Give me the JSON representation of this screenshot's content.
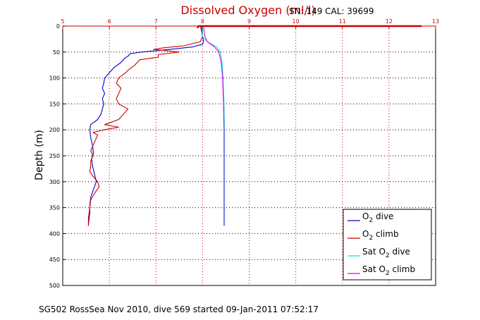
{
  "chart_data": {
    "type": "line",
    "title": "Dissolved Oxygen (ml/l)",
    "info_label": "SN: 149  CAL: 39699",
    "ylabel": "Depth (m)",
    "footer": "SG502 RossSea Nov 2010, dive 569 started 09-Jan-2011 07:52:17",
    "xlim": [
      5,
      13
    ],
    "ylim": [
      0,
      500
    ],
    "y_reversed": true,
    "x_axis_position": "top",
    "x_ticks": [
      5,
      6,
      7,
      8,
      9,
      10,
      11,
      12,
      13
    ],
    "y_ticks": [
      0,
      50,
      100,
      150,
      200,
      250,
      300,
      350,
      400,
      450,
      500
    ],
    "grid": true,
    "legend_position": "bottom-right",
    "series": [
      {
        "name_main": "O",
        "name_sub": "2",
        "name_rest": " dive",
        "color": "#0000cc",
        "points": [
          [
            7.98,
            0
          ],
          [
            7.99,
            10
          ],
          [
            8.0,
            20
          ],
          [
            8.02,
            30
          ],
          [
            8.0,
            35
          ],
          [
            7.8,
            40
          ],
          [
            7.3,
            45
          ],
          [
            6.7,
            50
          ],
          [
            6.45,
            53
          ],
          [
            6.4,
            58
          ],
          [
            6.33,
            62
          ],
          [
            6.25,
            70
          ],
          [
            6.1,
            80
          ],
          [
            6.0,
            90
          ],
          [
            5.9,
            100
          ],
          [
            5.88,
            110
          ],
          [
            5.85,
            120
          ],
          [
            5.9,
            130
          ],
          [
            5.85,
            140
          ],
          [
            5.88,
            150
          ],
          [
            5.85,
            160
          ],
          [
            5.82,
            170
          ],
          [
            5.75,
            180
          ],
          [
            5.6,
            190
          ],
          [
            5.58,
            200
          ],
          [
            5.6,
            215
          ],
          [
            5.64,
            230
          ],
          [
            5.66,
            245
          ],
          [
            5.62,
            255
          ],
          [
            5.64,
            270
          ],
          [
            5.68,
            285
          ],
          [
            5.72,
            300
          ],
          [
            5.66,
            315
          ],
          [
            5.6,
            330
          ],
          [
            5.58,
            345
          ],
          [
            5.58,
            360
          ],
          [
            5.56,
            375
          ],
          [
            5.55,
            385
          ]
        ]
      },
      {
        "name_main": "O",
        "name_sub": "2",
        "name_rest": " climb",
        "color": "#cc0000",
        "points": [
          [
            7.95,
            0
          ],
          [
            7.98,
            10
          ],
          [
            8.0,
            20
          ],
          [
            7.95,
            30
          ],
          [
            7.6,
            38
          ],
          [
            7.15,
            42
          ],
          [
            6.95,
            45
          ],
          [
            7.5,
            50
          ],
          [
            7.05,
            55
          ],
          [
            7.05,
            60
          ],
          [
            6.65,
            65
          ],
          [
            6.55,
            75
          ],
          [
            6.4,
            85
          ],
          [
            6.35,
            90
          ],
          [
            6.2,
            100
          ],
          [
            6.15,
            110
          ],
          [
            6.25,
            120
          ],
          [
            6.2,
            130
          ],
          [
            6.15,
            140
          ],
          [
            6.2,
            150
          ],
          [
            6.4,
            160
          ],
          [
            6.3,
            170
          ],
          [
            6.2,
            180
          ],
          [
            6.05,
            185
          ],
          [
            5.9,
            190
          ],
          [
            6.2,
            195
          ],
          [
            5.88,
            200
          ],
          [
            5.65,
            205
          ],
          [
            5.75,
            210
          ],
          [
            5.7,
            220
          ],
          [
            5.65,
            230
          ],
          [
            5.6,
            240
          ],
          [
            5.65,
            250
          ],
          [
            5.6,
            260
          ],
          [
            5.6,
            270
          ],
          [
            5.58,
            280
          ],
          [
            5.65,
            290
          ],
          [
            5.75,
            300
          ],
          [
            5.78,
            310
          ],
          [
            5.7,
            320
          ],
          [
            5.6,
            335
          ],
          [
            5.58,
            350
          ],
          [
            5.55,
            370
          ],
          [
            5.55,
            385
          ]
        ]
      },
      {
        "name_main": "Sat O",
        "name_sub": "2",
        "name_rest": " dive",
        "color": "#00e6e6",
        "points": [
          [
            8.0,
            0
          ],
          [
            8.0,
            20
          ],
          [
            8.1,
            30
          ],
          [
            8.3,
            40
          ],
          [
            8.38,
            50
          ],
          [
            8.42,
            70
          ],
          [
            8.44,
            100
          ],
          [
            8.46,
            150
          ],
          [
            8.47,
            200
          ],
          [
            8.47,
            250
          ],
          [
            8.47,
            300
          ],
          [
            8.47,
            350
          ],
          [
            8.47,
            385
          ]
        ]
      },
      {
        "name_main": "Sat O",
        "name_sub": "2",
        "name_rest": " climb",
        "color": "#e600e6",
        "points": [
          [
            8.02,
            0
          ],
          [
            8.05,
            20
          ],
          [
            8.1,
            30
          ],
          [
            8.25,
            40
          ],
          [
            8.35,
            50
          ],
          [
            8.4,
            70
          ],
          [
            8.43,
            100
          ],
          [
            8.45,
            150
          ],
          [
            8.46,
            200
          ],
          [
            8.46,
            250
          ],
          [
            8.46,
            300
          ],
          [
            8.46,
            350
          ],
          [
            8.46,
            385
          ]
        ]
      }
    ],
    "surface_marker": {
      "color": "#cc0000",
      "segments": [
        [
          [
            7.9,
            0
          ],
          [
            12.7,
            0
          ]
        ],
        [
          [
            7.9,
            0
          ],
          [
            7.9,
            4
          ]
        ]
      ]
    }
  }
}
